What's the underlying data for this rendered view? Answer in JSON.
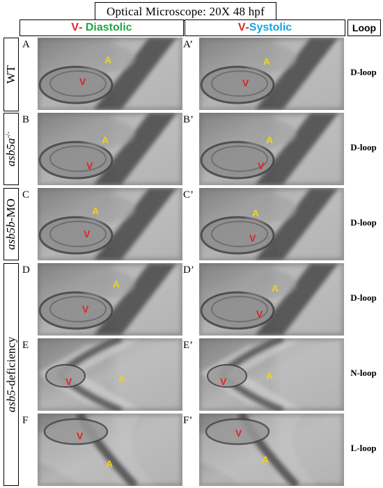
{
  "title": "Optical  Microscope: 20X   48 hpf",
  "headers": {
    "diastolic_v": "V",
    "diastolic_sep": "- ",
    "diastolic_word": "Diastolic",
    "systolic_v": "V",
    "systolic_sep": "-",
    "systolic_word": "Systolic",
    "loop": "Loop"
  },
  "row_labels": {
    "wt": "WT",
    "asb5a_italic": "asb5a",
    "asb5a_sup": "-/-",
    "asb5b_italic": "asb5b",
    "asb5b_rest": "-MO",
    "asb5_italic": "asb5",
    "asb5_rest": "-deficiency"
  },
  "rows": [
    {
      "left_label": "A",
      "right_label": "A’",
      "loop": "D-loop",
      "v": "V",
      "a": "A"
    },
    {
      "left_label": "B",
      "right_label": "B’",
      "loop": "D-loop",
      "v": "V",
      "a": "A"
    },
    {
      "left_label": "C",
      "right_label": "C’",
      "loop": "D-loop",
      "v": "V",
      "a": "A"
    },
    {
      "left_label": "D",
      "right_label": "D’",
      "loop": "D-loop",
      "v": "V",
      "a": "A"
    },
    {
      "left_label": "E",
      "right_label": "E’",
      "loop": "N-loop",
      "v": "V",
      "a": "A"
    },
    {
      "left_label": "F",
      "right_label": "F’",
      "loop": "L-loop",
      "v": "V",
      "a": "A"
    }
  ],
  "colors": {
    "ventricle_label": "#e52020",
    "atrium_label": "#f2d21a",
    "diastolic": "#1ca843",
    "systolic": "#13a5e0"
  }
}
